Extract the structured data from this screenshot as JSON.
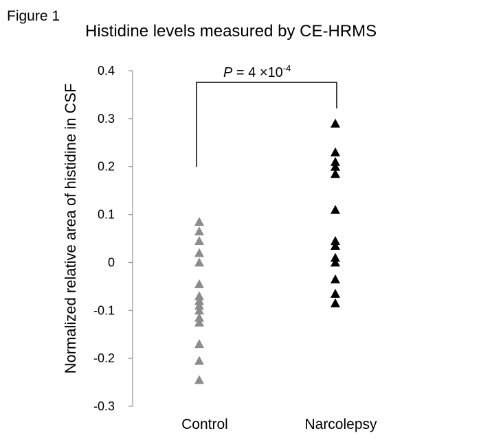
{
  "figure_label": "Figure 1",
  "chart_data": {
    "type": "scatter",
    "title": "Histidine levels measured by CE-HRMS",
    "xlabel": "",
    "ylabel": "Normalized relative area of histidine in CSF",
    "categories": [
      "Control",
      "Narcolepsy"
    ],
    "ylim": [
      -0.3,
      0.4
    ],
    "yticks": [
      -0.3,
      -0.2,
      -0.1,
      0,
      0.1,
      0.2,
      0.3,
      0.4
    ],
    "ytick_labels": [
      "-0.3",
      "-0.2",
      "-0.1",
      "0",
      "0.1",
      "0.2",
      "0.3",
      "0.4"
    ],
    "grid": false,
    "marker": "triangle",
    "series": [
      {
        "category": "Control",
        "color": "#8c8c8c",
        "values": [
          0.085,
          0.065,
          0.045,
          0.02,
          0.0,
          -0.045,
          -0.07,
          -0.08,
          -0.09,
          -0.1,
          -0.115,
          -0.125,
          -0.17,
          -0.205,
          -0.245
        ]
      },
      {
        "category": "Narcolepsy",
        "color": "#000000",
        "values": [
          0.29,
          0.23,
          0.21,
          0.2,
          0.185,
          0.11,
          0.045,
          0.035,
          0.01,
          0.0,
          -0.035,
          -0.065,
          -0.085
        ]
      }
    ],
    "annotation": {
      "p_symbol": "P",
      "p_text": " = 4 ×10",
      "p_exponent": "-4"
    }
  }
}
